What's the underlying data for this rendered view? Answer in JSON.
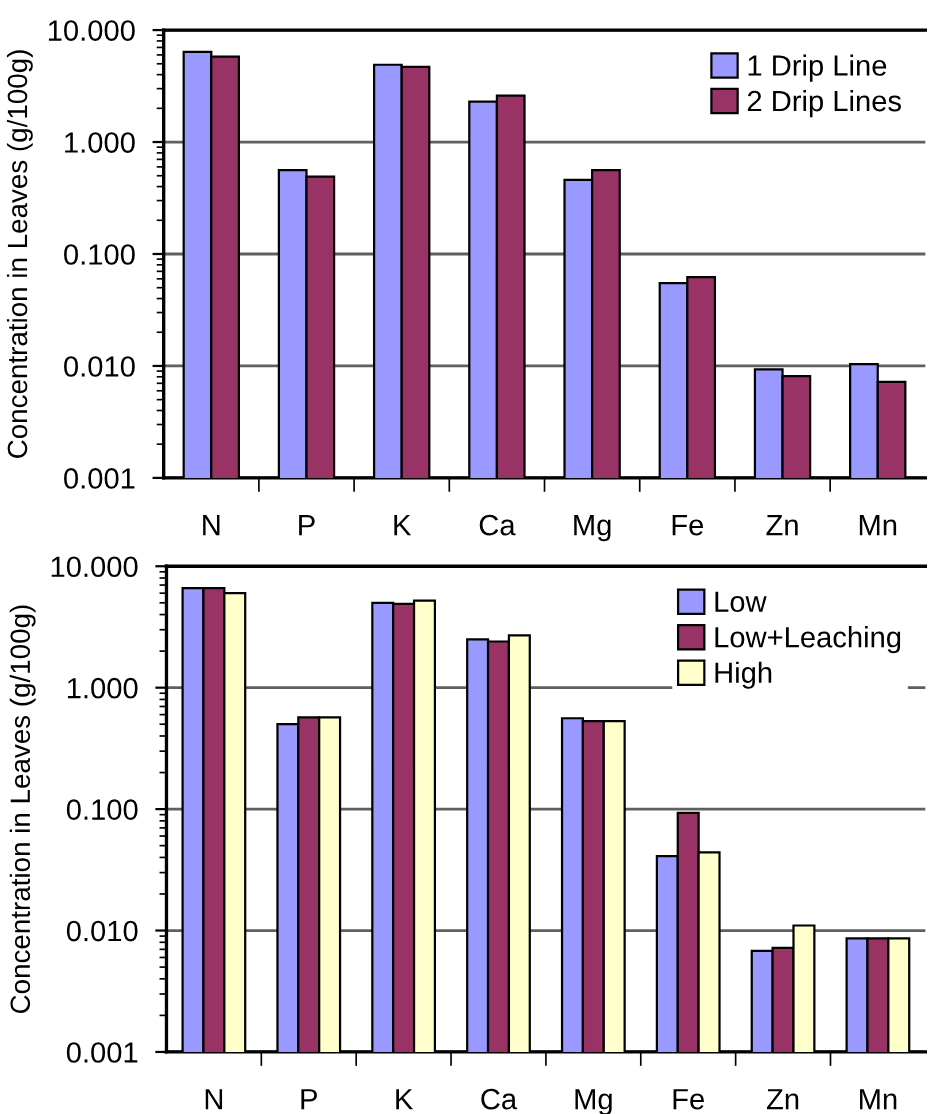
{
  "chart_data": [
    {
      "type": "bar",
      "categories": [
        "N",
        "P",
        "K",
        "Ca",
        "Mg",
        "Fe",
        "Zn",
        "Mn"
      ],
      "ylabel": "Concentration in Leaves (g/100g)",
      "log": true,
      "ylim": [
        0.001,
        10
      ],
      "yticks": [
        {
          "value": 0.001,
          "label": "0.001"
        },
        {
          "value": 0.01,
          "label": "0.010"
        },
        {
          "value": 0.1,
          "label": "0.100"
        },
        {
          "value": 1,
          "label": "1.000"
        },
        {
          "value": 10,
          "label": "10.000"
        }
      ],
      "grid": "y",
      "legend": "top right",
      "series": [
        {
          "name": "1 Drip Line",
          "color": "#9999ff",
          "values": [
            6.4,
            0.56,
            4.9,
            2.3,
            0.46,
            0.055,
            0.0093,
            0.0104
          ]
        },
        {
          "name": "2 Drip Lines",
          "color": "#993366",
          "values": [
            5.8,
            0.49,
            4.7,
            2.6,
            0.56,
            0.062,
            0.0081,
            0.0072
          ]
        }
      ]
    },
    {
      "type": "bar",
      "categories": [
        "N",
        "P",
        "K",
        "Ca",
        "Mg",
        "Fe",
        "Zn",
        "Mn"
      ],
      "ylabel": "Concentration in Leaves (g/100g)",
      "log": true,
      "ylim": [
        0.001,
        10
      ],
      "yticks": [
        {
          "value": 0.001,
          "label": "0.001"
        },
        {
          "value": 0.01,
          "label": "0.010"
        },
        {
          "value": 0.1,
          "label": "0.100"
        },
        {
          "value": 1,
          "label": "1.000"
        },
        {
          "value": 10,
          "label": "10.000"
        }
      ],
      "grid": "y",
      "legend": "top right",
      "series": [
        {
          "name": "Low",
          "color": "#9999ff",
          "values": [
            6.6,
            0.5,
            5.0,
            2.5,
            0.56,
            0.041,
            0.0068,
            0.0086
          ]
        },
        {
          "name": "Low+Leaching",
          "color": "#993366",
          "values": [
            6.6,
            0.57,
            4.9,
            2.4,
            0.53,
            0.093,
            0.0072,
            0.0086
          ]
        },
        {
          "name": "High",
          "color": "#ffffcc",
          "values": [
            6.0,
            0.57,
            5.2,
            2.7,
            0.53,
            0.044,
            0.011,
            0.0086
          ]
        }
      ]
    }
  ]
}
